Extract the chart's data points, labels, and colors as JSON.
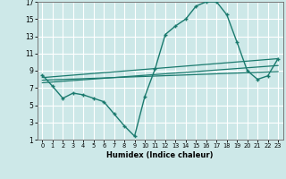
{
  "background_color": "#cde8e8",
  "grid_color": "#ffffff",
  "line_color": "#1a7a6e",
  "xlabel": "Humidex (Indice chaleur)",
  "xlim": [
    -0.5,
    23.5
  ],
  "ylim": [
    1,
    17
  ],
  "xticks": [
    0,
    1,
    2,
    3,
    4,
    5,
    6,
    7,
    8,
    9,
    10,
    11,
    12,
    13,
    14,
    15,
    16,
    17,
    18,
    19,
    20,
    21,
    22,
    23
  ],
  "yticks": [
    1,
    3,
    5,
    7,
    9,
    11,
    13,
    15,
    17
  ],
  "curve1_x": [
    0,
    1,
    2,
    3,
    4,
    5,
    6,
    7,
    8,
    9,
    10,
    11,
    12,
    13,
    14,
    15,
    16,
    17,
    18,
    19,
    20,
    21,
    22,
    23
  ],
  "curve1_y": [
    8.5,
    7.2,
    5.8,
    6.4,
    6.2,
    5.8,
    5.4,
    4.0,
    2.6,
    1.4,
    6.0,
    9.2,
    13.2,
    14.2,
    15.0,
    16.5,
    17.0,
    17.0,
    15.5,
    12.3,
    9.0,
    8.0,
    8.4,
    10.4
  ],
  "curve2_x": [
    0,
    23
  ],
  "curve2_y": [
    8.2,
    10.4
  ],
  "curve3_x": [
    0,
    23
  ],
  "curve3_y": [
    7.6,
    9.6
  ],
  "curve4_x": [
    0,
    23
  ],
  "curve4_y": [
    7.9,
    8.9
  ]
}
